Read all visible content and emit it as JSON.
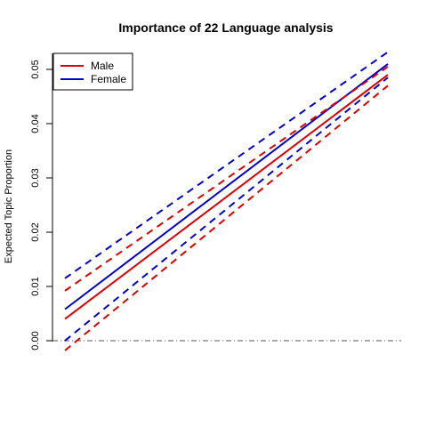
{
  "chart_data": {
    "type": "line",
    "title": "Importance of 22 Language analysis",
    "xlabel": "",
    "ylabel": "Expected Topic Proportion",
    "x": [
      0,
      1
    ],
    "ylim": [
      -0.002,
      0.053
    ],
    "yticks": [
      "0.00",
      "0.01",
      "0.02",
      "0.03",
      "0.04",
      "0.05"
    ],
    "ytick_values": [
      0,
      0.01,
      0.02,
      0.03,
      0.04,
      0.05
    ],
    "reference_line_y": 0,
    "legend": {
      "position": "top-left",
      "entries": [
        "Male",
        "Female"
      ]
    },
    "series": [
      {
        "name": "Male",
        "color": "#dd0000",
        "style": "solid",
        "values": [
          0.004,
          0.049
        ]
      },
      {
        "name": "Female",
        "color": "#0000cc",
        "style": "solid",
        "values": [
          0.0058,
          0.051
        ]
      },
      {
        "color": "#dd0000",
        "style": "dashed",
        "values": [
          0.0092,
          0.0505
        ]
      },
      {
        "color": "#dd0000",
        "style": "dashed",
        "values": [
          -0.0018,
          0.047
        ]
      },
      {
        "color": "#0000cc",
        "style": "dashed",
        "values": [
          0.0115,
          0.0532
        ]
      },
      {
        "color": "#0000cc",
        "style": "dashed",
        "values": [
          0.0,
          0.0485
        ]
      }
    ]
  }
}
